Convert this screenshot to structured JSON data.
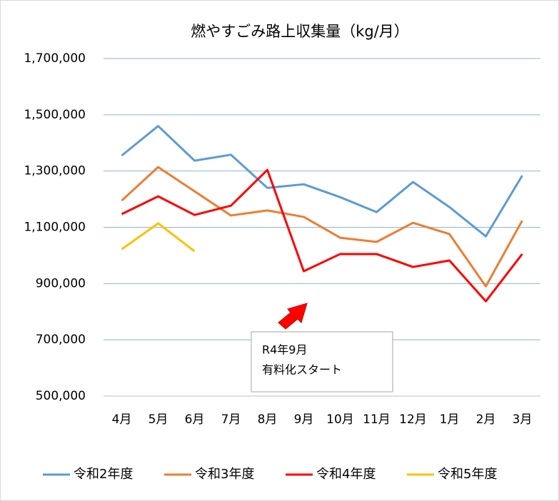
{
  "chart_data": {
    "type": "line",
    "title": "燃やすごみ路上収集量（kg/月）",
    "categories": [
      "4月",
      "5月",
      "6月",
      "7月",
      "8月",
      "9月",
      "10月",
      "11月",
      "12月",
      "1月",
      "2月",
      "3月"
    ],
    "series": [
      {
        "name": "令和2年度",
        "color": "#5b9bd5",
        "values": [
          1355000,
          1460000,
          1337000,
          1358000,
          1240000,
          1253000,
          1207000,
          1154000,
          1261000,
          1172000,
          1068000,
          1284000
        ]
      },
      {
        "name": "令和3年度",
        "color": "#ed7d31",
        "values": [
          1195000,
          1314000,
          1228000,
          1142000,
          1160000,
          1137000,
          1063000,
          1048000,
          1116000,
          1076000,
          890000,
          1124000
        ]
      },
      {
        "name": "令和4年度",
        "color": "#ff0000",
        "values": [
          1147000,
          1210000,
          1144000,
          1177000,
          1304000,
          944000,
          1005000,
          1005000,
          959000,
          982000,
          837000,
          1005000
        ]
      },
      {
        "name": "令和5年度",
        "color": "#ffc000",
        "values": [
          1022000,
          1114000,
          1015000,
          null,
          null,
          null,
          null,
          null,
          null,
          null,
          null,
          null
        ]
      }
    ],
    "ylim": [
      500000,
      1700000
    ],
    "yticks": [
      {
        "value": 500000,
        "label": "500,000"
      },
      {
        "value": 700000,
        "label": "700,000"
      },
      {
        "value": 900000,
        "label": "900,000"
      },
      {
        "value": 1100000,
        "label": "1,100,000"
      },
      {
        "value": 1300000,
        "label": "1,300,000"
      },
      {
        "value": 1500000,
        "label": "1,500,000"
      },
      {
        "value": 1700000,
        "label": "1,700,000"
      }
    ],
    "grid": true,
    "legend": "bottom",
    "annotation": [
      "R4年9月",
      "有料化スタート"
    ]
  }
}
